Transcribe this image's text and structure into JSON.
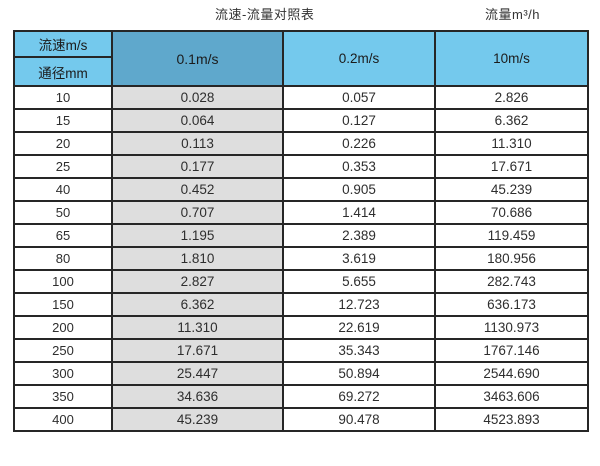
{
  "page": {
    "caption_table": "流速-流量对照表",
    "caption_unit": "流量m³/h"
  },
  "colors": {
    "header_blue": "#74C9ED",
    "header_blue_dark": "#5FA8CC",
    "highlight_column_gray": "#DEDEDE",
    "border_dark": "#262626",
    "text": "#2e2e2e"
  },
  "table": {
    "corner": {
      "top": "流速m/s",
      "bottom": "通径mm"
    },
    "velocity_headers": [
      "0.1m/s",
      "0.2m/s",
      "10m/s"
    ],
    "rows": [
      {
        "dn": "10",
        "values": [
          "0.028",
          "0.057",
          "2.826"
        ]
      },
      {
        "dn": "15",
        "values": [
          "0.064",
          "0.127",
          "6.362"
        ]
      },
      {
        "dn": "20",
        "values": [
          "0.113",
          "0.226",
          "11.310"
        ]
      },
      {
        "dn": "25",
        "values": [
          "0.177",
          "0.353",
          "17.671"
        ]
      },
      {
        "dn": "40",
        "values": [
          "0.452",
          "0.905",
          "45.239"
        ]
      },
      {
        "dn": "50",
        "values": [
          "0.707",
          "1.414",
          "70.686"
        ]
      },
      {
        "dn": "65",
        "values": [
          "1.195",
          "2.389",
          "119.459"
        ]
      },
      {
        "dn": "80",
        "values": [
          "1.810",
          "3.619",
          "180.956"
        ]
      },
      {
        "dn": "100",
        "values": [
          "2.827",
          "5.655",
          "282.743"
        ]
      },
      {
        "dn": "150",
        "values": [
          "6.362",
          "12.723",
          "636.173"
        ]
      },
      {
        "dn": "200",
        "values": [
          "11.310",
          "22.619",
          "1130.973"
        ]
      },
      {
        "dn": "250",
        "values": [
          "17.671",
          "35.343",
          "1767.146"
        ]
      },
      {
        "dn": "300",
        "values": [
          "25.447",
          "50.894",
          "2544.690"
        ]
      },
      {
        "dn": "350",
        "values": [
          "34.636",
          "69.272",
          "3463.606"
        ]
      },
      {
        "dn": "400",
        "values": [
          "45.239",
          "90.478",
          "4523.893"
        ]
      }
    ]
  },
  "chart_data": {
    "type": "table",
    "title": "流速-流量对照表",
    "unit_label": "流量m³/h",
    "row_axis": "通径mm",
    "col_axis": "流速m/s",
    "columns": [
      "0.1m/s",
      "0.2m/s",
      "10m/s"
    ],
    "diameters_mm": [
      10,
      15,
      20,
      25,
      40,
      50,
      65,
      80,
      100,
      150,
      200,
      250,
      300,
      350,
      400
    ],
    "series": [
      {
        "name": "0.1m/s",
        "values": [
          0.028,
          0.064,
          0.113,
          0.177,
          0.452,
          0.707,
          1.195,
          1.81,
          2.827,
          6.362,
          11.31,
          17.671,
          25.447,
          34.636,
          45.239
        ]
      },
      {
        "name": "0.2m/s",
        "values": [
          0.057,
          0.127,
          0.226,
          0.353,
          0.905,
          1.414,
          2.389,
          3.619,
          5.655,
          12.723,
          22.619,
          35.343,
          50.894,
          69.272,
          90.478
        ]
      },
      {
        "name": "10m/s",
        "values": [
          2.826,
          6.362,
          11.31,
          17.671,
          45.239,
          70.686,
          119.459,
          180.956,
          282.743,
          636.173,
          1130.973,
          1767.146,
          2544.69,
          3463.606,
          4523.893
        ]
      }
    ]
  }
}
